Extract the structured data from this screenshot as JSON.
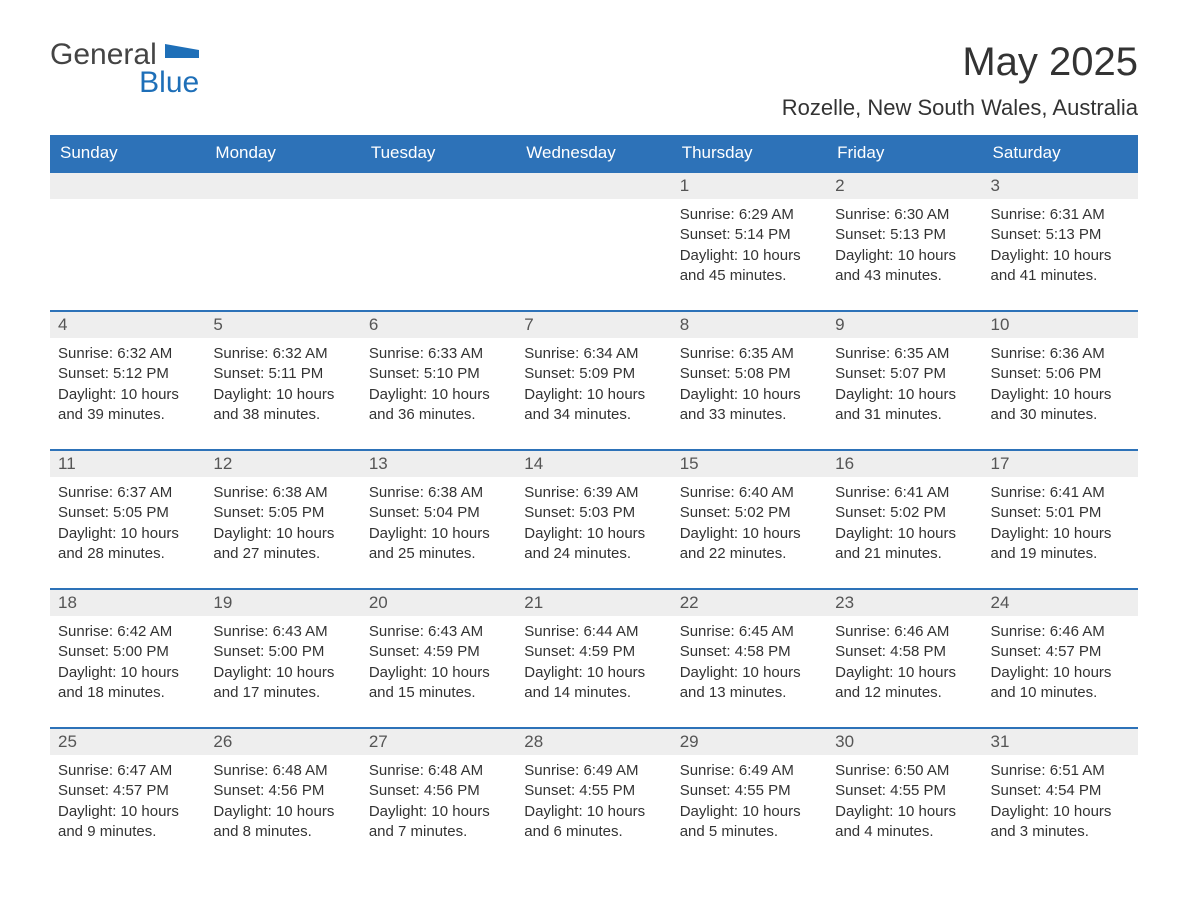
{
  "logo": {
    "text1": "General",
    "text2": "Blue"
  },
  "title": "May 2025",
  "location": "Rozelle, New South Wales, Australia",
  "colors": {
    "header_bg": "#2d72b8",
    "header_text": "#ffffff",
    "daynum_bg": "#eeeeee",
    "border": "#2d72b8",
    "body_text": "#333333",
    "logo_blue": "#1e6fb8"
  },
  "day_headers": [
    "Sunday",
    "Monday",
    "Tuesday",
    "Wednesday",
    "Thursday",
    "Friday",
    "Saturday"
  ],
  "weeks": [
    [
      {
        "empty": true
      },
      {
        "empty": true
      },
      {
        "empty": true
      },
      {
        "empty": true
      },
      {
        "n": "1",
        "sunrise": "6:29 AM",
        "sunset": "5:14 PM",
        "daylight": "10 hours and 45 minutes."
      },
      {
        "n": "2",
        "sunrise": "6:30 AM",
        "sunset": "5:13 PM",
        "daylight": "10 hours and 43 minutes."
      },
      {
        "n": "3",
        "sunrise": "6:31 AM",
        "sunset": "5:13 PM",
        "daylight": "10 hours and 41 minutes."
      }
    ],
    [
      {
        "n": "4",
        "sunrise": "6:32 AM",
        "sunset": "5:12 PM",
        "daylight": "10 hours and 39 minutes."
      },
      {
        "n": "5",
        "sunrise": "6:32 AM",
        "sunset": "5:11 PM",
        "daylight": "10 hours and 38 minutes."
      },
      {
        "n": "6",
        "sunrise": "6:33 AM",
        "sunset": "5:10 PM",
        "daylight": "10 hours and 36 minutes."
      },
      {
        "n": "7",
        "sunrise": "6:34 AM",
        "sunset": "5:09 PM",
        "daylight": "10 hours and 34 minutes."
      },
      {
        "n": "8",
        "sunrise": "6:35 AM",
        "sunset": "5:08 PM",
        "daylight": "10 hours and 33 minutes."
      },
      {
        "n": "9",
        "sunrise": "6:35 AM",
        "sunset": "5:07 PM",
        "daylight": "10 hours and 31 minutes."
      },
      {
        "n": "10",
        "sunrise": "6:36 AM",
        "sunset": "5:06 PM",
        "daylight": "10 hours and 30 minutes."
      }
    ],
    [
      {
        "n": "11",
        "sunrise": "6:37 AM",
        "sunset": "5:05 PM",
        "daylight": "10 hours and 28 minutes."
      },
      {
        "n": "12",
        "sunrise": "6:38 AM",
        "sunset": "5:05 PM",
        "daylight": "10 hours and 27 minutes."
      },
      {
        "n": "13",
        "sunrise": "6:38 AM",
        "sunset": "5:04 PM",
        "daylight": "10 hours and 25 minutes."
      },
      {
        "n": "14",
        "sunrise": "6:39 AM",
        "sunset": "5:03 PM",
        "daylight": "10 hours and 24 minutes."
      },
      {
        "n": "15",
        "sunrise": "6:40 AM",
        "sunset": "5:02 PM",
        "daylight": "10 hours and 22 minutes."
      },
      {
        "n": "16",
        "sunrise": "6:41 AM",
        "sunset": "5:02 PM",
        "daylight": "10 hours and 21 minutes."
      },
      {
        "n": "17",
        "sunrise": "6:41 AM",
        "sunset": "5:01 PM",
        "daylight": "10 hours and 19 minutes."
      }
    ],
    [
      {
        "n": "18",
        "sunrise": "6:42 AM",
        "sunset": "5:00 PM",
        "daylight": "10 hours and 18 minutes."
      },
      {
        "n": "19",
        "sunrise": "6:43 AM",
        "sunset": "5:00 PM",
        "daylight": "10 hours and 17 minutes."
      },
      {
        "n": "20",
        "sunrise": "6:43 AM",
        "sunset": "4:59 PM",
        "daylight": "10 hours and 15 minutes."
      },
      {
        "n": "21",
        "sunrise": "6:44 AM",
        "sunset": "4:59 PM",
        "daylight": "10 hours and 14 minutes."
      },
      {
        "n": "22",
        "sunrise": "6:45 AM",
        "sunset": "4:58 PM",
        "daylight": "10 hours and 13 minutes."
      },
      {
        "n": "23",
        "sunrise": "6:46 AM",
        "sunset": "4:58 PM",
        "daylight": "10 hours and 12 minutes."
      },
      {
        "n": "24",
        "sunrise": "6:46 AM",
        "sunset": "4:57 PM",
        "daylight": "10 hours and 10 minutes."
      }
    ],
    [
      {
        "n": "25",
        "sunrise": "6:47 AM",
        "sunset": "4:57 PM",
        "daylight": "10 hours and 9 minutes."
      },
      {
        "n": "26",
        "sunrise": "6:48 AM",
        "sunset": "4:56 PM",
        "daylight": "10 hours and 8 minutes."
      },
      {
        "n": "27",
        "sunrise": "6:48 AM",
        "sunset": "4:56 PM",
        "daylight": "10 hours and 7 minutes."
      },
      {
        "n": "28",
        "sunrise": "6:49 AM",
        "sunset": "4:55 PM",
        "daylight": "10 hours and 6 minutes."
      },
      {
        "n": "29",
        "sunrise": "6:49 AM",
        "sunset": "4:55 PM",
        "daylight": "10 hours and 5 minutes."
      },
      {
        "n": "30",
        "sunrise": "6:50 AM",
        "sunset": "4:55 PM",
        "daylight": "10 hours and 4 minutes."
      },
      {
        "n": "31",
        "sunrise": "6:51 AM",
        "sunset": "4:54 PM",
        "daylight": "10 hours and 3 minutes."
      }
    ]
  ],
  "labels": {
    "sunrise": "Sunrise: ",
    "sunset": "Sunset: ",
    "daylight": "Daylight: "
  }
}
